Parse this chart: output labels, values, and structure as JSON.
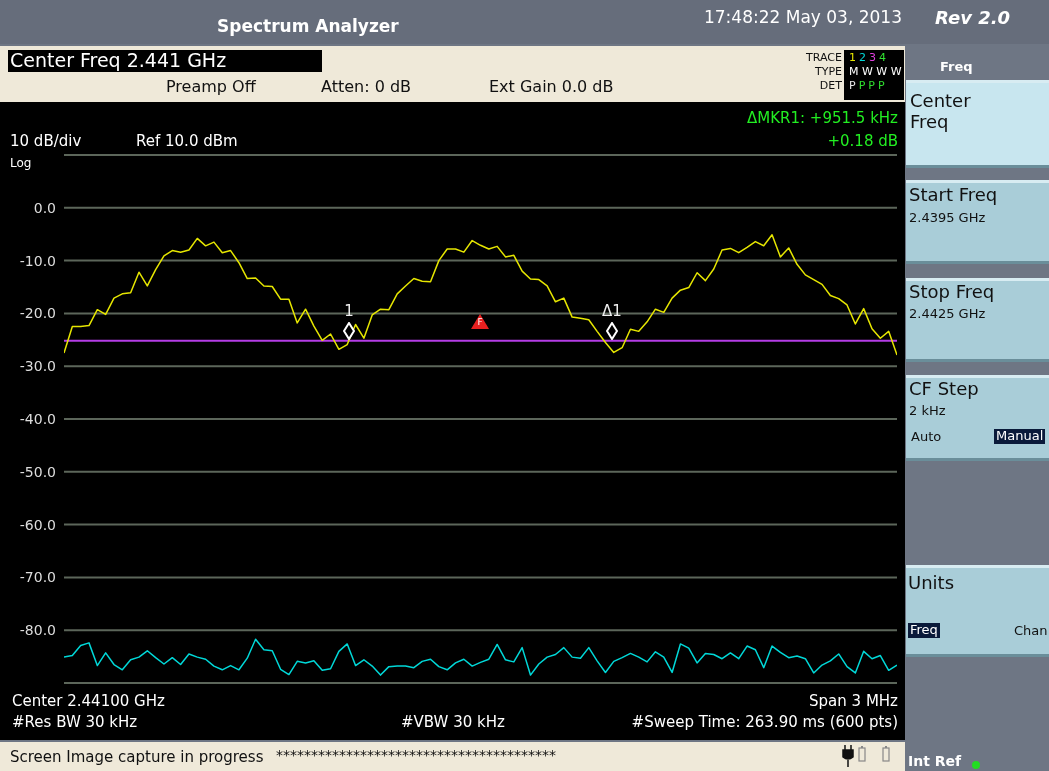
{
  "chart_data": {
    "type": "line",
    "title": "Spectrum Analyzer",
    "categories": [
      null,
      null,
      null,
      null,
      null,
      null,
      null,
      null,
      null,
      null,
      null,
      null,
      null,
      null,
      null,
      null,
      null,
      null,
      null,
      null,
      null,
      null,
      null,
      null,
      null,
      null,
      null,
      null,
      null,
      null,
      null,
      null,
      null,
      null,
      null,
      null,
      null,
      null,
      null,
      null,
      null,
      null,
      null,
      null,
      null,
      null,
      null,
      null,
      null,
      null,
      null,
      null,
      null,
      null,
      null,
      null,
      null,
      null,
      null,
      null,
      null,
      null,
      null,
      null,
      null,
      null,
      null,
      null,
      null,
      null,
      null,
      null,
      null,
      null,
      null,
      null,
      null,
      null,
      null,
      null,
      null,
      null,
      null,
      null,
      null,
      null,
      null,
      null,
      null,
      null,
      null,
      null,
      null,
      null,
      null,
      null,
      null,
      null,
      null,
      null,
      null
    ],
    "ylim": [
      -90,
      10
    ],
    "yticks": [
      {
        "value": 10,
        "label": null
      },
      {
        "value": 0,
        "label": "0.0"
      },
      {
        "value": -10,
        "label": "-10.0"
      },
      {
        "value": -20,
        "label": "-20.0"
      },
      {
        "value": -30,
        "label": "-30.0"
      },
      {
        "value": -40,
        "label": "-40.0"
      },
      {
        "value": -50,
        "label": "-50.0"
      },
      {
        "value": -60,
        "label": "-60.0"
      },
      {
        "value": -70,
        "label": "-70.0"
      },
      {
        "value": -80,
        "label": "-80.0"
      },
      {
        "value": -90,
        "label": null
      }
    ],
    "tick_labels": "y",
    "grid": true,
    "marker": "none",
    "line_style": "solid",
    "ref_lines": [
      {
        "axis": "y",
        "value": -25.2,
        "color": "#b43ce6"
      }
    ],
    "series": [
      {
        "color": "#e6e600",
        "values": [
          -27.5,
          -22.5,
          -22.5,
          -22.3,
          -19.3,
          -20.2,
          -17.1,
          -16.3,
          -16.1,
          -12.2,
          -14.8,
          -11.7,
          -9.1,
          -8.1,
          -8.4,
          -8.0,
          -5.8,
          -7.2,
          -6.5,
          -8.5,
          -8.1,
          -10.4,
          -13.4,
          -13.3,
          -14.8,
          -14.9,
          -17.3,
          -17.3,
          -21.8,
          -19.2,
          -22.4,
          -25.1,
          -23.9,
          -26.8,
          -25.9,
          -22.1,
          -24.7,
          -20.3,
          -19.2,
          -19.3,
          -16.3,
          -14.8,
          -13.4,
          -13.9,
          -14.0,
          -10.0,
          -7.8,
          -7.8,
          -8.4,
          -6.2,
          -7.1,
          -7.8,
          -7.3,
          -9.3,
          -9.0,
          -12.0,
          -13.5,
          -13.6,
          -14.8,
          -17.8,
          -17.1,
          -20.7,
          -20.9,
          -21.2,
          -23.4,
          -25.5,
          -27.4,
          -26.5,
          -23.0,
          -23.4,
          -21.6,
          -19.2,
          -19.8,
          -17.1,
          -15.6,
          -15.1,
          -12.3,
          -13.8,
          -11.6,
          -8.0,
          -7.7,
          -8.5,
          -7.5,
          -6.4,
          -7.2,
          -5.1,
          -9.3,
          -7.6,
          -10.7,
          -12.7,
          -13.6,
          -14.5,
          -16.6,
          -17.2,
          -18.4,
          -22.0,
          -19.1,
          -22.9,
          -24.7,
          -23.4,
          -27.9
        ]
      },
      {
        "color": "#00d8d8",
        "values": [
          -85.1,
          -84.8,
          -82.9,
          -82.4,
          -86.7,
          -84.3,
          -86.5,
          -87.5,
          -85.6,
          -85.1,
          -83.9,
          -85.2,
          -86.4,
          -85.2,
          -86.5,
          -84.5,
          -85.1,
          -85.5,
          -86.8,
          -87.5,
          -86.7,
          -87.5,
          -85.3,
          -81.7,
          -83.7,
          -83.9,
          -87.4,
          -88.4,
          -85.9,
          -86.2,
          -85.8,
          -87.6,
          -87.3,
          -84.0,
          -82.6,
          -86.7,
          -85.6,
          -86.8,
          -88.5,
          -86.9,
          -86.8,
          -86.8,
          -87.1,
          -85.9,
          -85.5,
          -86.9,
          -87.5,
          -86.2,
          -85.5,
          -86.8,
          -86.1,
          -85.5,
          -82.7,
          -85.6,
          -86.0,
          -83.3,
          -88.5,
          -86.4,
          -85.1,
          -84.6,
          -83.3,
          -85.1,
          -85.3,
          -83.3,
          -85.8,
          -88.0,
          -85.9,
          -85.2,
          -84.4,
          -85.1,
          -86.0,
          -84.1,
          -85.1,
          -88.0,
          -82.6,
          -83.4,
          -86.2,
          -84.4,
          -84.6,
          -85.4,
          -84.3,
          -85.4,
          -83.0,
          -83.7,
          -87.1,
          -83.0,
          -84.2,
          -85.2,
          -84.9,
          -85.4,
          -88.1,
          -86.6,
          -85.8,
          -84.5,
          -86.9,
          -88.1,
          -84.0,
          -85.4,
          -84.8,
          -87.6,
          -86.6
        ]
      }
    ],
    "annotations": [
      "17:48:22  May 03, 2013",
      "Rev 2.0",
      "Center Freq 2.441 GHz",
      "Preamp Off",
      "Atten: 0 dB",
      "Ext Gain 0.0 dB",
      "TRACE",
      "TYPE",
      "DET",
      "1 2 3 4",
      "M W W W",
      "P P P P",
      "ΔMKR1: +951.5 kHz",
      "+0.18 dB",
      "10 dB/div",
      "Ref 10.0 dBm",
      "Log",
      "Center 2.44100 GHz",
      "Span 3 MHz",
      "#Res BW 30 kHz",
      "#VBW 30 kHz",
      "#Sweep Time: 263.90 ms (600 pts)",
      "Screen Image capture in progress",
      "****************************************",
      "Freq",
      "Center Freq",
      "Start Freq",
      "2.4395 GHz",
      "Stop Freq",
      "2.4425 GHz",
      "CF Step",
      "2 kHz",
      "Auto",
      "Manual",
      "Units",
      "Freq",
      "Chan",
      "Int Ref",
      "1",
      "Δ1",
      "F"
    ]
  }
}
